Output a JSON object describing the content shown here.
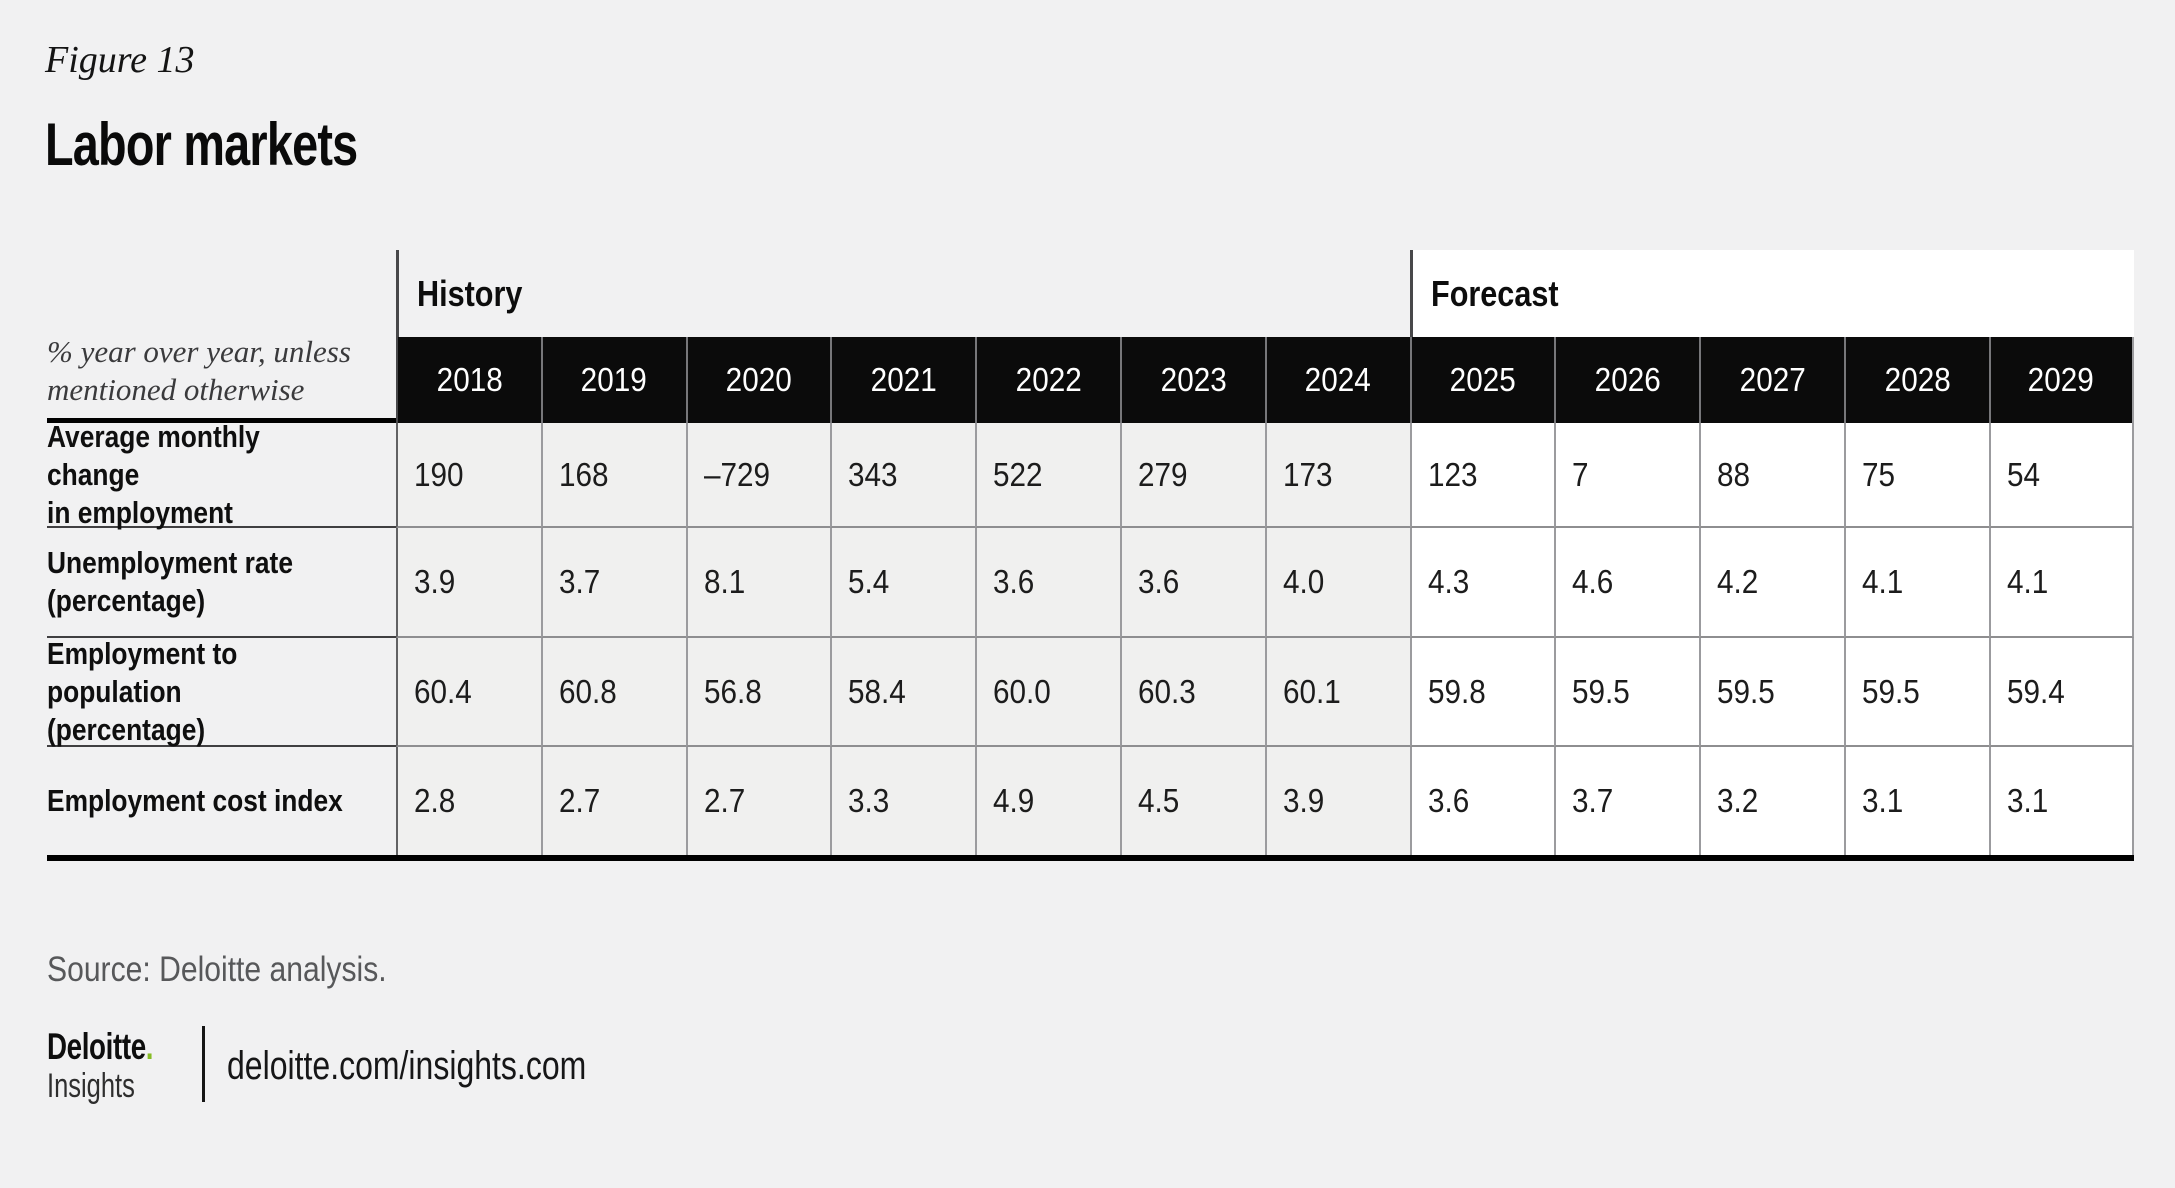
{
  "figure": {
    "label": "Figure 13",
    "title": "Labor markets"
  },
  "chart_data": {
    "type": "table",
    "title": "Labor markets",
    "figure_label": "Figure 13",
    "unit_note": "% year over year, unless\nmentioned otherwise",
    "categories": [
      "2018",
      "2019",
      "2020",
      "2021",
      "2022",
      "2023",
      "2024",
      "2025",
      "2026",
      "2027",
      "2028",
      "2029"
    ],
    "groups": [
      {
        "label": "History",
        "span": 7
      },
      {
        "label": "Forecast",
        "span": 5
      }
    ],
    "history_columns": 7,
    "series": [
      {
        "name": "Average monthly change\nin employment",
        "values": [
          "190",
          "168",
          "–729",
          "343",
          "522",
          "279",
          "173",
          "123",
          "7",
          "88",
          "75",
          "54"
        ]
      },
      {
        "name": "Unemployment rate\n(percentage)",
        "values": [
          "3.9",
          "3.7",
          "8.1",
          "5.4",
          "3.6",
          "3.6",
          "4.0",
          "4.3",
          "4.6",
          "4.2",
          "4.1",
          "4.1"
        ]
      },
      {
        "name": "Employment to\npopulation (percentage)",
        "values": [
          "60.4",
          "60.8",
          "56.8",
          "58.4",
          "60.0",
          "60.3",
          "60.1",
          "59.8",
          "59.5",
          "59.5",
          "59.5",
          "59.4"
        ]
      },
      {
        "name": "Employment cost index",
        "values": [
          "2.8",
          "2.7",
          "2.7",
          "3.3",
          "4.9",
          "4.5",
          "3.9",
          "3.6",
          "3.7",
          "3.2",
          "3.1",
          "3.1"
        ]
      }
    ]
  },
  "footer": {
    "source": "Source: Deloitte analysis.",
    "logo_brand": "Deloitte",
    "logo_dot": ".",
    "logo_sub": "Insights",
    "url": "deloitte.com/insights.com"
  },
  "colors": {
    "page_bg": "#F1F1F2",
    "header_bg": "#0B0B0B",
    "history_cell_bg": "#F0F0EF",
    "forecast_cell_bg": "#FFFFFF",
    "accent_green": "#86BC25",
    "table_border": "#000000"
  }
}
